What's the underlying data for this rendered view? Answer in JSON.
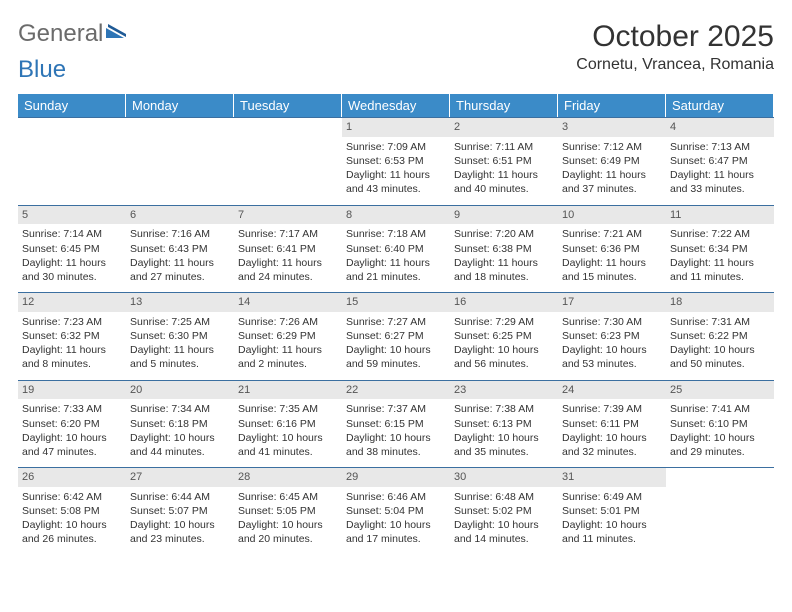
{
  "logo": {
    "part1": "General",
    "part2": "Blue"
  },
  "title": "October 2025",
  "location": "Cornetu, Vrancea, Romania",
  "colors": {
    "header_bg": "#3b8bc8",
    "header_text": "#ffffff",
    "border": "#3b6fa0",
    "daynum_bg": "#e8e8e8",
    "logo_gray": "#6b6b6b",
    "logo_blue": "#2e75b6"
  },
  "day_headers": [
    "Sunday",
    "Monday",
    "Tuesday",
    "Wednesday",
    "Thursday",
    "Friday",
    "Saturday"
  ],
  "leading_blanks": 3,
  "days": [
    {
      "n": 1,
      "sunrise": "7:09 AM",
      "sunset": "6:53 PM",
      "dl": "11 hours and 43 minutes."
    },
    {
      "n": 2,
      "sunrise": "7:11 AM",
      "sunset": "6:51 PM",
      "dl": "11 hours and 40 minutes."
    },
    {
      "n": 3,
      "sunrise": "7:12 AM",
      "sunset": "6:49 PM",
      "dl": "11 hours and 37 minutes."
    },
    {
      "n": 4,
      "sunrise": "7:13 AM",
      "sunset": "6:47 PM",
      "dl": "11 hours and 33 minutes."
    },
    {
      "n": 5,
      "sunrise": "7:14 AM",
      "sunset": "6:45 PM",
      "dl": "11 hours and 30 minutes."
    },
    {
      "n": 6,
      "sunrise": "7:16 AM",
      "sunset": "6:43 PM",
      "dl": "11 hours and 27 minutes."
    },
    {
      "n": 7,
      "sunrise": "7:17 AM",
      "sunset": "6:41 PM",
      "dl": "11 hours and 24 minutes."
    },
    {
      "n": 8,
      "sunrise": "7:18 AM",
      "sunset": "6:40 PM",
      "dl": "11 hours and 21 minutes."
    },
    {
      "n": 9,
      "sunrise": "7:20 AM",
      "sunset": "6:38 PM",
      "dl": "11 hours and 18 minutes."
    },
    {
      "n": 10,
      "sunrise": "7:21 AM",
      "sunset": "6:36 PM",
      "dl": "11 hours and 15 minutes."
    },
    {
      "n": 11,
      "sunrise": "7:22 AM",
      "sunset": "6:34 PM",
      "dl": "11 hours and 11 minutes."
    },
    {
      "n": 12,
      "sunrise": "7:23 AM",
      "sunset": "6:32 PM",
      "dl": "11 hours and 8 minutes."
    },
    {
      "n": 13,
      "sunrise": "7:25 AM",
      "sunset": "6:30 PM",
      "dl": "11 hours and 5 minutes."
    },
    {
      "n": 14,
      "sunrise": "7:26 AM",
      "sunset": "6:29 PM",
      "dl": "11 hours and 2 minutes."
    },
    {
      "n": 15,
      "sunrise": "7:27 AM",
      "sunset": "6:27 PM",
      "dl": "10 hours and 59 minutes."
    },
    {
      "n": 16,
      "sunrise": "7:29 AM",
      "sunset": "6:25 PM",
      "dl": "10 hours and 56 minutes."
    },
    {
      "n": 17,
      "sunrise": "7:30 AM",
      "sunset": "6:23 PM",
      "dl": "10 hours and 53 minutes."
    },
    {
      "n": 18,
      "sunrise": "7:31 AM",
      "sunset": "6:22 PM",
      "dl": "10 hours and 50 minutes."
    },
    {
      "n": 19,
      "sunrise": "7:33 AM",
      "sunset": "6:20 PM",
      "dl": "10 hours and 47 minutes."
    },
    {
      "n": 20,
      "sunrise": "7:34 AM",
      "sunset": "6:18 PM",
      "dl": "10 hours and 44 minutes."
    },
    {
      "n": 21,
      "sunrise": "7:35 AM",
      "sunset": "6:16 PM",
      "dl": "10 hours and 41 minutes."
    },
    {
      "n": 22,
      "sunrise": "7:37 AM",
      "sunset": "6:15 PM",
      "dl": "10 hours and 38 minutes."
    },
    {
      "n": 23,
      "sunrise": "7:38 AM",
      "sunset": "6:13 PM",
      "dl": "10 hours and 35 minutes."
    },
    {
      "n": 24,
      "sunrise": "7:39 AM",
      "sunset": "6:11 PM",
      "dl": "10 hours and 32 minutes."
    },
    {
      "n": 25,
      "sunrise": "7:41 AM",
      "sunset": "6:10 PM",
      "dl": "10 hours and 29 minutes."
    },
    {
      "n": 26,
      "sunrise": "6:42 AM",
      "sunset": "5:08 PM",
      "dl": "10 hours and 26 minutes."
    },
    {
      "n": 27,
      "sunrise": "6:44 AM",
      "sunset": "5:07 PM",
      "dl": "10 hours and 23 minutes."
    },
    {
      "n": 28,
      "sunrise": "6:45 AM",
      "sunset": "5:05 PM",
      "dl": "10 hours and 20 minutes."
    },
    {
      "n": 29,
      "sunrise": "6:46 AM",
      "sunset": "5:04 PM",
      "dl": "10 hours and 17 minutes."
    },
    {
      "n": 30,
      "sunrise": "6:48 AM",
      "sunset": "5:02 PM",
      "dl": "10 hours and 14 minutes."
    },
    {
      "n": 31,
      "sunrise": "6:49 AM",
      "sunset": "5:01 PM",
      "dl": "10 hours and 11 minutes."
    }
  ],
  "labels": {
    "sunrise": "Sunrise:",
    "sunset": "Sunset:",
    "daylight": "Daylight:"
  }
}
